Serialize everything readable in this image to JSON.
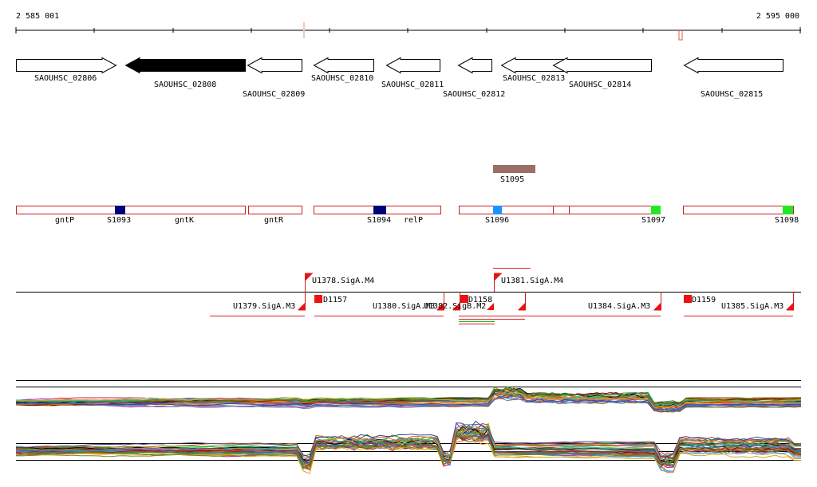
{
  "scale": {
    "start_label": "2 585 001",
    "end_label": "2 595 000"
  },
  "colors": {
    "gene_fill": "#ffffff",
    "gene_highlight": "#000000",
    "region_outline": "#cc2020",
    "s_segment_dark": "#00007a",
    "s_segment_light": "#1e90ff",
    "s_segment_green": "#22e822",
    "s_segment_brown": "#9b6e64",
    "promoter_red": "#ee1111"
  },
  "genes": [
    {
      "label": "SAOUHSC_02806",
      "highlight": false
    },
    {
      "label": "SAOUHSC_02808",
      "highlight": true
    },
    {
      "label": "SAOUHSC_02809",
      "highlight": false
    },
    {
      "label": "SAOUHSC_02810",
      "highlight": false
    },
    {
      "label": "SAOUHSC_02811",
      "highlight": false
    },
    {
      "label": "SAOUHSC_02812",
      "highlight": false
    },
    {
      "label": "SAOUHSC_02813",
      "highlight": false
    },
    {
      "label": "SAOUHSC_02814",
      "highlight": false
    },
    {
      "label": "SAOUHSC_02815",
      "highlight": false
    }
  ],
  "s_track": {
    "top_segment": "S1095",
    "region_labels": [
      "gntP",
      "gntK",
      "gntR",
      "relP"
    ],
    "segment_labels": [
      "S1093",
      "S1094",
      "S1096",
      "S1097",
      "S1098"
    ]
  },
  "promoters": {
    "labels": [
      "U1378.SigA.M4",
      "U1381.SigA.M4",
      "U1379.SigA.M3",
      "U1380.SigA.M3",
      "U1382.SigB.M2",
      "U1384.SigA.M3",
      "U1385.SigA.M3"
    ],
    "d_labels": [
      "D1157",
      "D1158",
      "D1159"
    ]
  }
}
